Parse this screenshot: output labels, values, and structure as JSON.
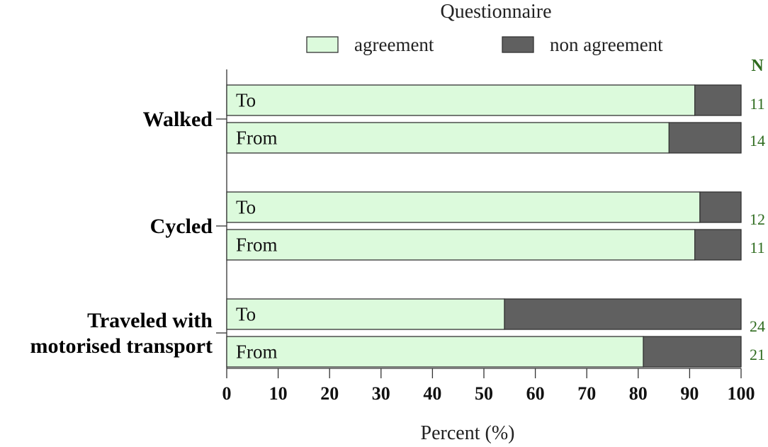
{
  "chart_data": {
    "type": "bar",
    "orientation": "horizontal",
    "stacked": true,
    "legend": {
      "title": "Questionnaire",
      "placement": "top-center",
      "entries": [
        {
          "name": "agreement",
          "color": "#dcfadc"
        },
        {
          "name": "non agreement",
          "color": "#606060"
        }
      ]
    },
    "n_header": "N",
    "groups": [
      {
        "label": "Walked",
        "bars": [
          {
            "label": "To",
            "agreement": 91,
            "non_agreement": 9,
            "n": "11"
          },
          {
            "label": "From",
            "agreement": 86,
            "non_agreement": 14,
            "n": "14"
          }
        ]
      },
      {
        "label": "Cycled",
        "bars": [
          {
            "label": "To",
            "agreement": 92,
            "non_agreement": 8,
            "n": "12"
          },
          {
            "label": "From",
            "agreement": 91,
            "non_agreement": 9,
            "n": "11"
          }
        ]
      },
      {
        "label": "Traveled with motorised transport",
        "label_lines": [
          "Traveled with",
          "motorised transport"
        ],
        "bars": [
          {
            "label": "To",
            "agreement": 54,
            "non_agreement": 46,
            "n": "24"
          },
          {
            "label": "From",
            "agreement": 81,
            "non_agreement": 19,
            "n": "21"
          }
        ]
      }
    ],
    "xlabel": "Percent (%)",
    "xlim": [
      0,
      100
    ],
    "xticks": [
      0,
      10,
      20,
      30,
      40,
      50,
      60,
      70,
      80,
      90,
      100
    ],
    "grid": false,
    "colors": {
      "agreement": "#dcfadc",
      "non_agreement": "#606060",
      "n_text": "#2e6b1e"
    }
  }
}
